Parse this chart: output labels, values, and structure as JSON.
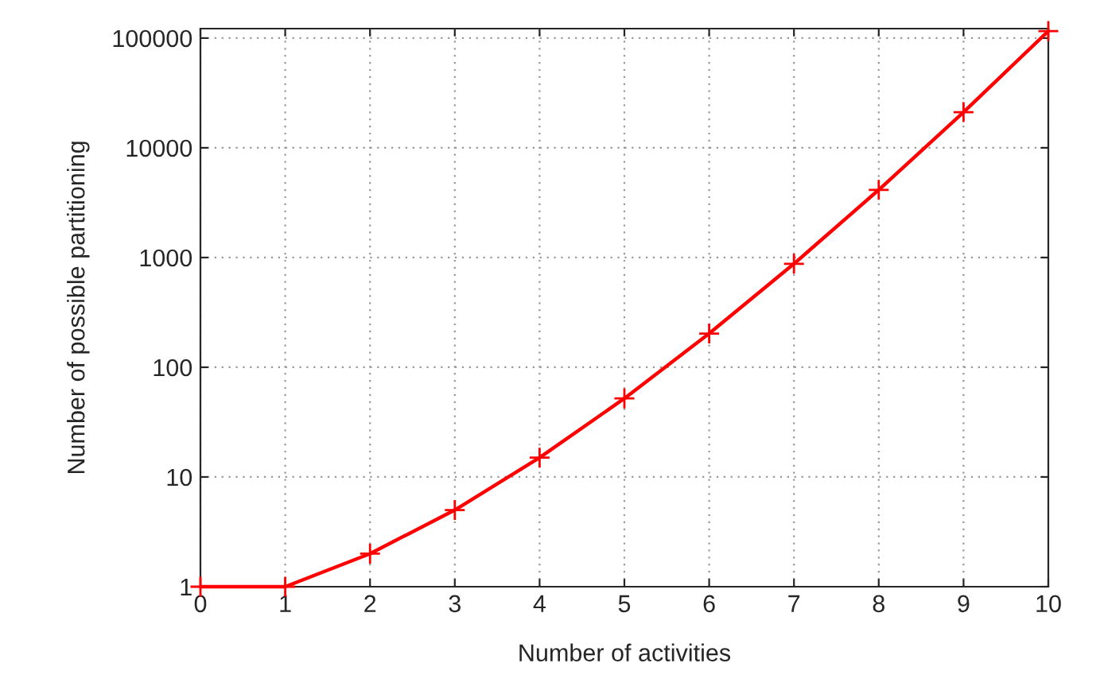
{
  "chart_data": {
    "type": "line",
    "xlabel": "Number of activities",
    "ylabel": "Number of possible partitioning",
    "x": [
      0,
      1,
      2,
      3,
      4,
      5,
      6,
      7,
      8,
      9,
      10
    ],
    "series": [
      {
        "color": "#ff0000",
        "values": [
          1,
          1,
          2,
          5,
          15,
          52,
          203,
          877,
          4140,
          21147,
          115975
        ]
      }
    ],
    "log": "y",
    "xlim": [
      0,
      10
    ],
    "xticks": [
      0,
      1,
      2,
      3,
      4,
      5,
      6,
      7,
      8,
      9,
      10
    ],
    "ylim": [
      1,
      122000
    ],
    "yticks": [
      1,
      10,
      100,
      1000,
      10000,
      100000
    ],
    "grid": true,
    "marker": "cross",
    "line_style": "solid"
  }
}
